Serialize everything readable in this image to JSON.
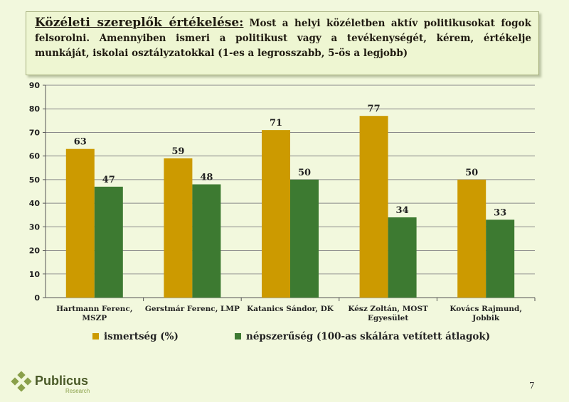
{
  "header": {
    "title_main": "Közéleti szereplők értékelése:",
    "title_body": "Most a helyi közéletben aktív politikusokat fogok felsorolni. Amennyiben ismeri a politikust vagy a tevékenységét, kérem, értékelje munkáját, iskolai osztályzatokkal (1-es a legrosszabb, 5-ös a legjobb)"
  },
  "chart_data": {
    "type": "bar",
    "categories": [
      [
        "Hartmann Ferenc,",
        "MSZP"
      ],
      [
        "Gerstmár Ferenc, LMP"
      ],
      [
        "Katanics Sándor, DK"
      ],
      [
        "Kész Zoltán, MOST",
        "Egyesület"
      ],
      [
        "Kovács Rajmund,",
        "Jobbik"
      ]
    ],
    "series": [
      {
        "name": "ismertség (%)",
        "values": [
          63,
          59,
          71,
          77,
          50
        ],
        "color": "#cc9a00"
      },
      {
        "name": "népszerűség (100-as skálára vetített átlagok)",
        "values": [
          47,
          48,
          50,
          34,
          33
        ],
        "color": "#3d7a31"
      }
    ],
    "ylim": [
      0,
      90
    ],
    "yticks": [
      0,
      10,
      20,
      30,
      40,
      50,
      60,
      70,
      80,
      90
    ],
    "grid": true,
    "legend_position": "bottom"
  },
  "footer": {
    "logo_text": "Publicus",
    "logo_sub": "Research",
    "page_number": "7"
  },
  "colors": {
    "background": "#f2f8dd",
    "gridline": "#8a8a8a",
    "series1": "#cc9a00",
    "series2": "#3d7a31",
    "logo_green": "#8aa04a"
  }
}
